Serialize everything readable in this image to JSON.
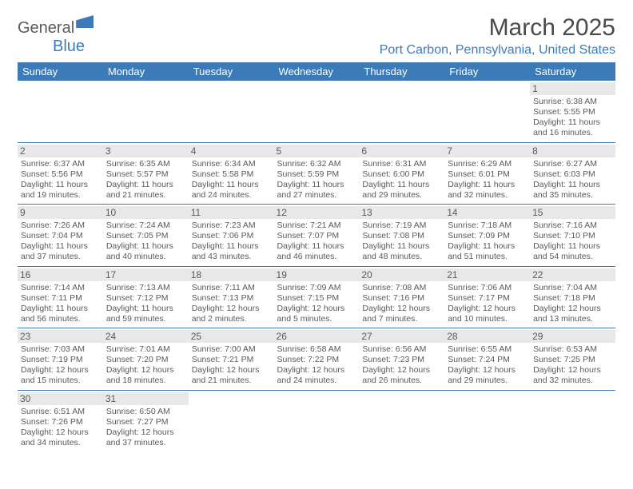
{
  "brand": {
    "part1": "General",
    "part2": "Blue"
  },
  "title": "March 2025",
  "location": "Port Carbon, Pennsylvania, United States",
  "colors": {
    "header_bg": "#3d7bb8",
    "header_text": "#ffffff",
    "daynum_bg": "#e8e8e8",
    "text": "#5a5a5a",
    "rule": "#3d7bb8"
  },
  "weekdays": [
    "Sunday",
    "Monday",
    "Tuesday",
    "Wednesday",
    "Thursday",
    "Friday",
    "Saturday"
  ],
  "weeks": [
    [
      null,
      null,
      null,
      null,
      null,
      null,
      {
        "n": "1",
        "sunrise": "6:38 AM",
        "sunset": "5:55 PM",
        "daylight": "11 hours and 16 minutes."
      }
    ],
    [
      {
        "n": "2",
        "sunrise": "6:37 AM",
        "sunset": "5:56 PM",
        "daylight": "11 hours and 19 minutes."
      },
      {
        "n": "3",
        "sunrise": "6:35 AM",
        "sunset": "5:57 PM",
        "daylight": "11 hours and 21 minutes."
      },
      {
        "n": "4",
        "sunrise": "6:34 AM",
        "sunset": "5:58 PM",
        "daylight": "11 hours and 24 minutes."
      },
      {
        "n": "5",
        "sunrise": "6:32 AM",
        "sunset": "5:59 PM",
        "daylight": "11 hours and 27 minutes."
      },
      {
        "n": "6",
        "sunrise": "6:31 AM",
        "sunset": "6:00 PM",
        "daylight": "11 hours and 29 minutes."
      },
      {
        "n": "7",
        "sunrise": "6:29 AM",
        "sunset": "6:01 PM",
        "daylight": "11 hours and 32 minutes."
      },
      {
        "n": "8",
        "sunrise": "6:27 AM",
        "sunset": "6:03 PM",
        "daylight": "11 hours and 35 minutes."
      }
    ],
    [
      {
        "n": "9",
        "sunrise": "7:26 AM",
        "sunset": "7:04 PM",
        "daylight": "11 hours and 37 minutes."
      },
      {
        "n": "10",
        "sunrise": "7:24 AM",
        "sunset": "7:05 PM",
        "daylight": "11 hours and 40 minutes."
      },
      {
        "n": "11",
        "sunrise": "7:23 AM",
        "sunset": "7:06 PM",
        "daylight": "11 hours and 43 minutes."
      },
      {
        "n": "12",
        "sunrise": "7:21 AM",
        "sunset": "7:07 PM",
        "daylight": "11 hours and 46 minutes."
      },
      {
        "n": "13",
        "sunrise": "7:19 AM",
        "sunset": "7:08 PM",
        "daylight": "11 hours and 48 minutes."
      },
      {
        "n": "14",
        "sunrise": "7:18 AM",
        "sunset": "7:09 PM",
        "daylight": "11 hours and 51 minutes."
      },
      {
        "n": "15",
        "sunrise": "7:16 AM",
        "sunset": "7:10 PM",
        "daylight": "11 hours and 54 minutes."
      }
    ],
    [
      {
        "n": "16",
        "sunrise": "7:14 AM",
        "sunset": "7:11 PM",
        "daylight": "11 hours and 56 minutes."
      },
      {
        "n": "17",
        "sunrise": "7:13 AM",
        "sunset": "7:12 PM",
        "daylight": "11 hours and 59 minutes."
      },
      {
        "n": "18",
        "sunrise": "7:11 AM",
        "sunset": "7:13 PM",
        "daylight": "12 hours and 2 minutes."
      },
      {
        "n": "19",
        "sunrise": "7:09 AM",
        "sunset": "7:15 PM",
        "daylight": "12 hours and 5 minutes."
      },
      {
        "n": "20",
        "sunrise": "7:08 AM",
        "sunset": "7:16 PM",
        "daylight": "12 hours and 7 minutes."
      },
      {
        "n": "21",
        "sunrise": "7:06 AM",
        "sunset": "7:17 PM",
        "daylight": "12 hours and 10 minutes."
      },
      {
        "n": "22",
        "sunrise": "7:04 AM",
        "sunset": "7:18 PM",
        "daylight": "12 hours and 13 minutes."
      }
    ],
    [
      {
        "n": "23",
        "sunrise": "7:03 AM",
        "sunset": "7:19 PM",
        "daylight": "12 hours and 15 minutes."
      },
      {
        "n": "24",
        "sunrise": "7:01 AM",
        "sunset": "7:20 PM",
        "daylight": "12 hours and 18 minutes."
      },
      {
        "n": "25",
        "sunrise": "7:00 AM",
        "sunset": "7:21 PM",
        "daylight": "12 hours and 21 minutes."
      },
      {
        "n": "26",
        "sunrise": "6:58 AM",
        "sunset": "7:22 PM",
        "daylight": "12 hours and 24 minutes."
      },
      {
        "n": "27",
        "sunrise": "6:56 AM",
        "sunset": "7:23 PM",
        "daylight": "12 hours and 26 minutes."
      },
      {
        "n": "28",
        "sunrise": "6:55 AM",
        "sunset": "7:24 PM",
        "daylight": "12 hours and 29 minutes."
      },
      {
        "n": "29",
        "sunrise": "6:53 AM",
        "sunset": "7:25 PM",
        "daylight": "12 hours and 32 minutes."
      }
    ],
    [
      {
        "n": "30",
        "sunrise": "6:51 AM",
        "sunset": "7:26 PM",
        "daylight": "12 hours and 34 minutes."
      },
      {
        "n": "31",
        "sunrise": "6:50 AM",
        "sunset": "7:27 PM",
        "daylight": "12 hours and 37 minutes."
      },
      null,
      null,
      null,
      null,
      null
    ]
  ],
  "labels": {
    "sunrise": "Sunrise: ",
    "sunset": "Sunset: ",
    "daylight": "Daylight: "
  }
}
